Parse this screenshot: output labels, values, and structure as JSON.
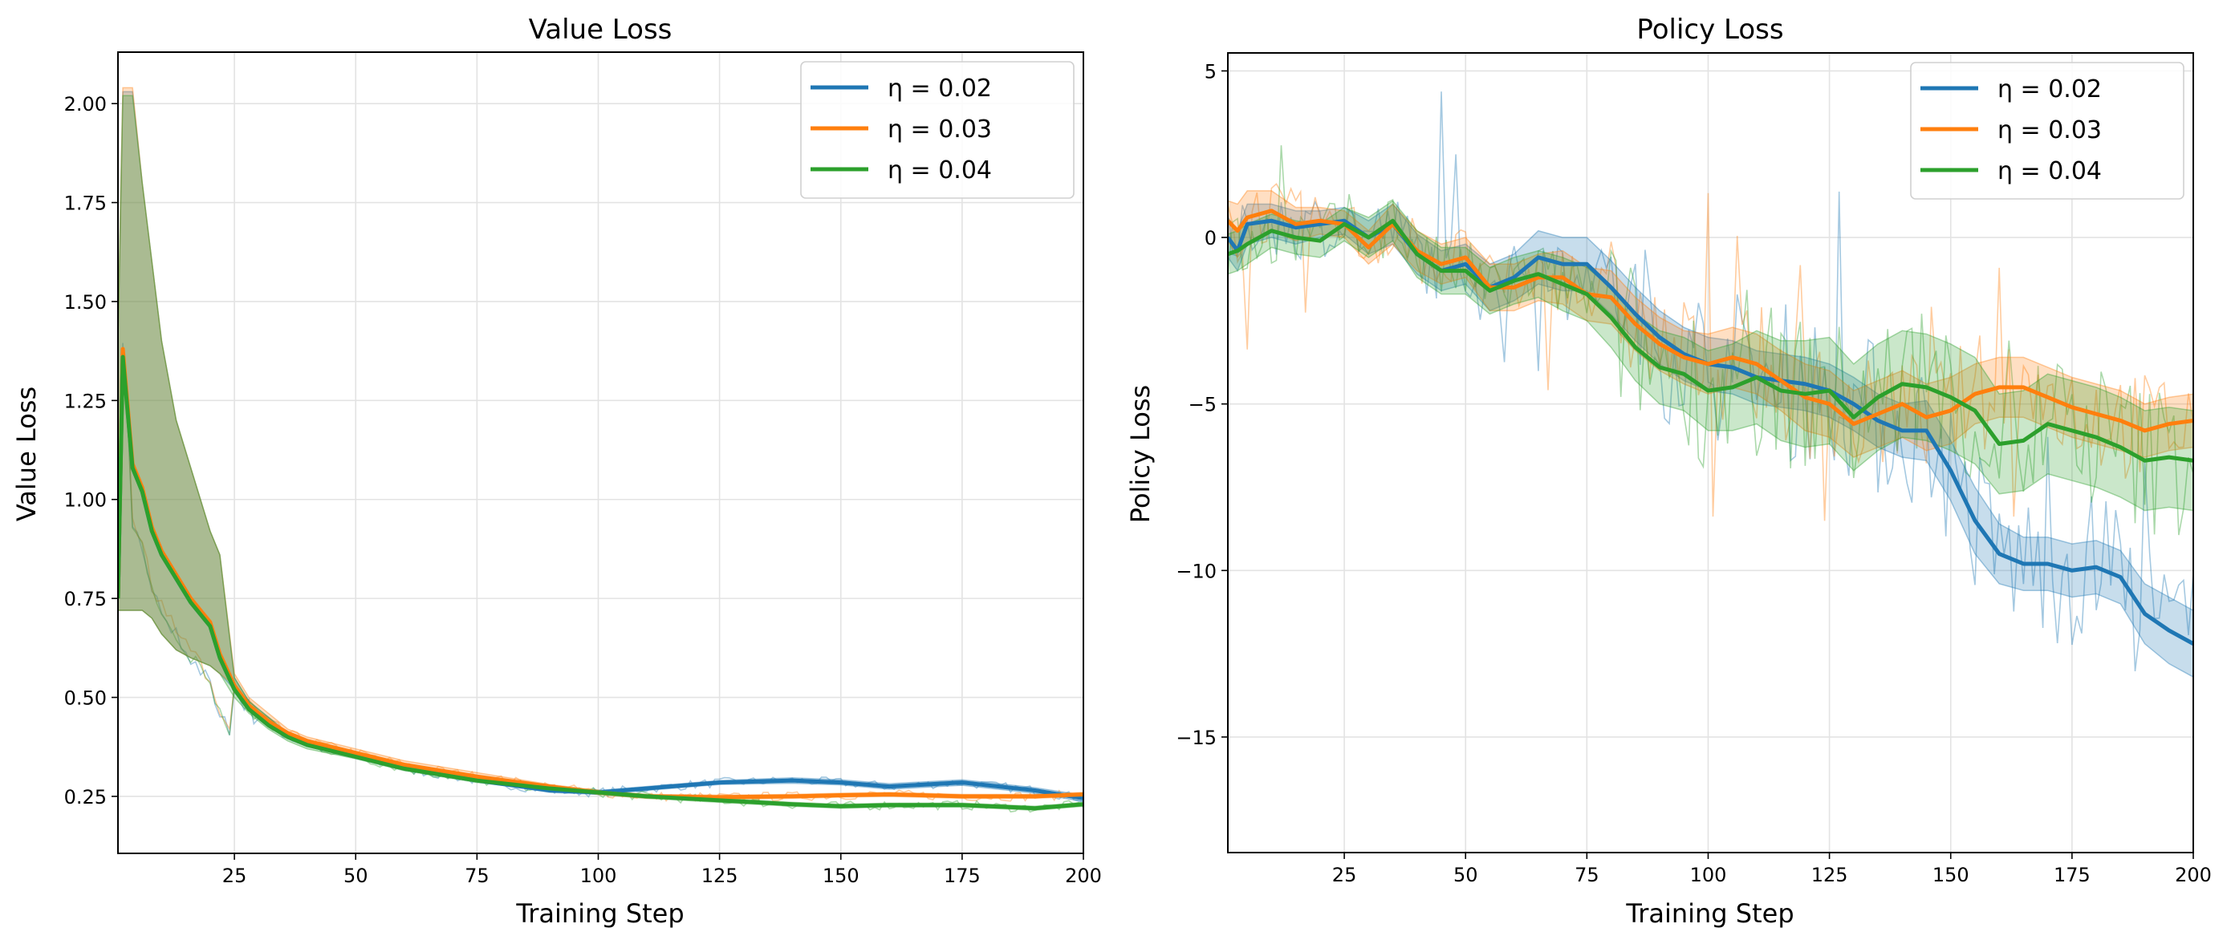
{
  "chart_data": [
    {
      "type": "line",
      "title": "Value Loss",
      "xlabel": "Training Step",
      "ylabel": "Value Loss",
      "xlim": [
        1,
        200
      ],
      "ylim": [
        0.106,
        2.13
      ],
      "xticks": [
        25,
        50,
        75,
        100,
        125,
        150,
        175,
        200
      ],
      "yticks": [
        0.25,
        0.5,
        0.75,
        1.0,
        1.25,
        1.5,
        1.75,
        2.0
      ],
      "ytick_labels": [
        "0.25",
        "0.50",
        "0.75",
        "1.00",
        "1.25",
        "1.50",
        "1.75",
        "2.00"
      ],
      "grid": true,
      "legend": "top-right",
      "x": [
        1,
        2,
        4,
        6,
        8,
        10,
        13,
        16,
        20,
        22,
        25,
        28,
        32,
        36,
        40,
        50,
        60,
        75,
        90,
        100,
        110,
        125,
        140,
        150,
        160,
        175,
        190,
        200
      ],
      "series": [
        {
          "name": "η = 0.02",
          "color": "#1f77b4",
          "values": [
            0.75,
            1.37,
            1.08,
            1.02,
            0.92,
            0.86,
            0.8,
            0.74,
            0.68,
            0.6,
            0.52,
            0.47,
            0.43,
            0.4,
            0.38,
            0.35,
            0.32,
            0.29,
            0.265,
            0.26,
            0.27,
            0.285,
            0.29,
            0.285,
            0.275,
            0.285,
            0.265,
            0.245
          ],
          "lower": [
            0.72,
            0.72,
            0.72,
            0.72,
            0.7,
            0.66,
            0.62,
            0.6,
            0.58,
            0.56,
            0.52,
            0.47,
            0.43,
            0.4,
            0.38,
            0.35,
            0.32,
            0.29,
            0.26,
            0.255,
            0.265,
            0.28,
            0.283,
            0.279,
            0.268,
            0.278,
            0.258,
            0.237
          ],
          "upper": [
            1.4,
            2.03,
            2.03,
            1.8,
            1.6,
            1.4,
            1.2,
            1.08,
            0.92,
            0.86,
            0.55,
            0.49,
            0.45,
            0.41,
            0.39,
            0.36,
            0.33,
            0.3,
            0.27,
            0.265,
            0.275,
            0.29,
            0.297,
            0.292,
            0.282,
            0.292,
            0.272,
            0.253
          ]
        },
        {
          "name": "η = 0.03",
          "color": "#ff7f0e",
          "values": [
            0.75,
            1.38,
            1.09,
            1.03,
            0.93,
            0.87,
            0.81,
            0.75,
            0.69,
            0.61,
            0.53,
            0.48,
            0.44,
            0.41,
            0.39,
            0.36,
            0.33,
            0.3,
            0.275,
            0.26,
            0.25,
            0.248,
            0.25,
            0.253,
            0.255,
            0.25,
            0.25,
            0.255
          ],
          "lower": [
            0.72,
            0.72,
            0.72,
            0.72,
            0.7,
            0.66,
            0.62,
            0.6,
            0.58,
            0.56,
            0.53,
            0.48,
            0.44,
            0.41,
            0.38,
            0.355,
            0.325,
            0.295,
            0.27,
            0.255,
            0.245,
            0.243,
            0.245,
            0.248,
            0.25,
            0.245,
            0.245,
            0.25
          ],
          "upper": [
            1.4,
            2.04,
            2.04,
            1.8,
            1.6,
            1.4,
            1.2,
            1.08,
            0.92,
            0.86,
            0.56,
            0.5,
            0.46,
            0.42,
            0.4,
            0.37,
            0.34,
            0.31,
            0.28,
            0.265,
            0.255,
            0.253,
            0.255,
            0.258,
            0.26,
            0.255,
            0.255,
            0.26
          ]
        },
        {
          "name": "η = 0.04",
          "color": "#2ca02c",
          "values": [
            0.75,
            1.36,
            1.08,
            1.02,
            0.92,
            0.86,
            0.8,
            0.74,
            0.68,
            0.6,
            0.52,
            0.47,
            0.43,
            0.4,
            0.38,
            0.35,
            0.32,
            0.29,
            0.27,
            0.26,
            0.25,
            0.24,
            0.23,
            0.225,
            0.228,
            0.228,
            0.22,
            0.23
          ],
          "lower": [
            0.72,
            0.72,
            0.72,
            0.72,
            0.7,
            0.66,
            0.62,
            0.6,
            0.58,
            0.56,
            0.5,
            0.46,
            0.42,
            0.39,
            0.37,
            0.345,
            0.315,
            0.285,
            0.265,
            0.255,
            0.245,
            0.235,
            0.225,
            0.22,
            0.223,
            0.223,
            0.215,
            0.225
          ],
          "upper": [
            1.4,
            2.02,
            2.02,
            1.8,
            1.6,
            1.4,
            1.2,
            1.08,
            0.92,
            0.86,
            0.55,
            0.49,
            0.45,
            0.41,
            0.39,
            0.355,
            0.325,
            0.295,
            0.275,
            0.265,
            0.255,
            0.245,
            0.235,
            0.23,
            0.233,
            0.233,
            0.225,
            0.235
          ]
        }
      ]
    },
    {
      "type": "line",
      "title": "Policy Loss",
      "xlabel": "Training Step",
      "ylabel": "Policy Loss",
      "xlim": [
        1,
        200
      ],
      "ylim": [
        -18.47,
        5.54
      ],
      "xticks": [
        25,
        50,
        75,
        100,
        125,
        150,
        175,
        200
      ],
      "yticks": [
        -15,
        -10,
        -5,
        0,
        5
      ],
      "ytick_labels": [
        "−15",
        "−10",
        "−5",
        "0",
        "5"
      ],
      "grid": true,
      "legend": "top-right",
      "x": [
        1,
        3,
        5,
        10,
        15,
        20,
        25,
        30,
        35,
        40,
        45,
        50,
        55,
        60,
        65,
        70,
        75,
        80,
        85,
        90,
        95,
        100,
        105,
        110,
        115,
        120,
        125,
        130,
        135,
        140,
        145,
        150,
        155,
        160,
        165,
        170,
        175,
        180,
        185,
        190,
        195,
        200
      ],
      "series": [
        {
          "name": "η = 0.02",
          "color": "#1f77b4",
          "values": [
            0,
            -0.4,
            0.4,
            0.5,
            0.3,
            0.4,
            0.5,
            0,
            0.4,
            -0.5,
            -1,
            -0.8,
            -1.5,
            -1.2,
            -0.6,
            -0.8,
            -0.8,
            -1.5,
            -2.3,
            -3,
            -3.5,
            -3.8,
            -3.9,
            -4.2,
            -4.3,
            -4.4,
            -4.6,
            -5,
            -5.5,
            -5.8,
            -5.8,
            -7,
            -8.5,
            -9.5,
            -9.8,
            -9.8,
            -10,
            -9.9,
            -10.2,
            -11.3,
            -11.8,
            -12.2
          ],
          "band": [
            0.6,
            0.6,
            0.6,
            0.5,
            0.5,
            0.4,
            0.4,
            0.5,
            0.6,
            0.6,
            0.6,
            0.6,
            0.7,
            0.7,
            0.8,
            0.8,
            0.8,
            0.8,
            0.8,
            0.8,
            0.8,
            0.8,
            0.8,
            0.8,
            0.8,
            0.8,
            0.8,
            0.8,
            0.8,
            0.8,
            0.9,
            0.9,
            1.0,
            0.9,
            0.8,
            0.8,
            0.8,
            0.8,
            0.8,
            0.9,
            1.0,
            1.0
          ]
        },
        {
          "name": "η = 0.03",
          "color": "#ff7f0e",
          "values": [
            0.5,
            0.2,
            0.6,
            0.8,
            0.4,
            0.5,
            0.4,
            -0.3,
            0.4,
            -0.4,
            -0.8,
            -0.6,
            -1.5,
            -1.5,
            -1.2,
            -1.2,
            -1.7,
            -1.8,
            -2.6,
            -3.2,
            -3.6,
            -3.8,
            -3.6,
            -3.8,
            -4.3,
            -4.8,
            -5,
            -5.6,
            -5.3,
            -5,
            -5.4,
            -5.2,
            -4.7,
            -4.5,
            -4.5,
            -4.8,
            -5.1,
            -5.3,
            -5.5,
            -5.8,
            -5.6,
            -5.5
          ],
          "band": [
            0.6,
            0.8,
            0.8,
            0.6,
            0.5,
            0.4,
            0.4,
            0.5,
            0.6,
            0.6,
            0.6,
            0.6,
            0.7,
            0.7,
            0.7,
            0.8,
            0.8,
            0.8,
            0.8,
            0.8,
            0.8,
            0.9,
            0.9,
            0.9,
            0.9,
            1.0,
            1.0,
            1.0,
            1.0,
            1.0,
            1.0,
            1.0,
            0.9,
            0.9,
            0.9,
            0.9,
            0.9,
            0.9,
            0.9,
            0.8,
            0.8,
            0.8
          ]
        },
        {
          "name": "η = 0.04",
          "color": "#2ca02c",
          "values": [
            -0.5,
            -0.4,
            -0.2,
            0.2,
            0,
            -0.1,
            0.4,
            0,
            0.5,
            -0.5,
            -1,
            -1,
            -1.6,
            -1.3,
            -1.1,
            -1.4,
            -1.7,
            -2.4,
            -3.3,
            -3.9,
            -4.1,
            -4.6,
            -4.5,
            -4.2,
            -4.6,
            -4.7,
            -4.6,
            -5.4,
            -4.8,
            -4.4,
            -4.5,
            -4.8,
            -5.2,
            -6.2,
            -6.1,
            -5.6,
            -5.8,
            -6,
            -6.3,
            -6.7,
            -6.6,
            -6.7
          ],
          "band": [
            0.6,
            0.6,
            0.6,
            0.5,
            0.5,
            0.5,
            0.5,
            0.6,
            0.6,
            0.7,
            0.7,
            0.7,
            0.7,
            0.7,
            0.7,
            0.8,
            0.8,
            0.9,
            1.0,
            1.1,
            1.1,
            1.2,
            1.3,
            1.4,
            1.5,
            1.6,
            1.6,
            1.6,
            1.6,
            1.6,
            1.6,
            1.6,
            1.6,
            1.5,
            1.5,
            1.5,
            1.5,
            1.5,
            1.5,
            1.5,
            1.5,
            1.5
          ]
        }
      ]
    }
  ]
}
